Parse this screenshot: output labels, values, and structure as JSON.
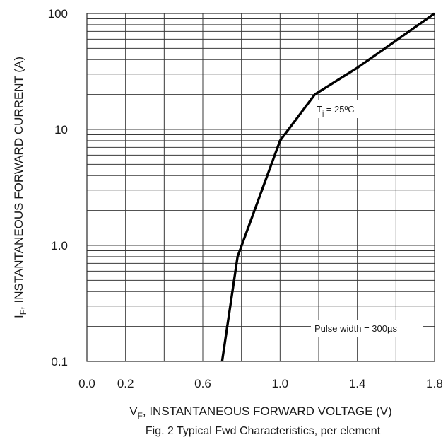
{
  "chart_data": {
    "type": "line",
    "x_ticks": [
      "0.0",
      "0.2",
      "0.6",
      "1.0",
      "1.4",
      "1.8"
    ],
    "y_ticks": [
      "100",
      "10",
      "1.0",
      "0.1"
    ],
    "xlim": [
      0.0,
      1.8
    ],
    "ylim": [
      0.1,
      100
    ],
    "y_scale": "log",
    "grid": true,
    "ylabel_main": "I",
    "ylabel_sub": "F",
    "ylabel_rest": ", INSTANTANEOUS FORWARD CURRENT (A)",
    "xlabel_main": "V",
    "xlabel_sub": "F",
    "xlabel_rest": ", INSTANTANEOUS FORWARD VOLTAGE (V)",
    "caption": "Fig. 2  Typical Fwd Characteristics, per element",
    "annotations": {
      "tj_main": "T",
      "tj_sub": "j",
      "tj_rest": " = 25ºC",
      "pulse": "Pulse width = 300µs"
    },
    "series": [
      {
        "x": [
          0.7,
          0.78,
          1.0,
          1.18,
          1.4,
          1.8
        ],
        "y": [
          0.1,
          0.8,
          8.0,
          20.0,
          34.0,
          100.0
        ]
      }
    ]
  }
}
